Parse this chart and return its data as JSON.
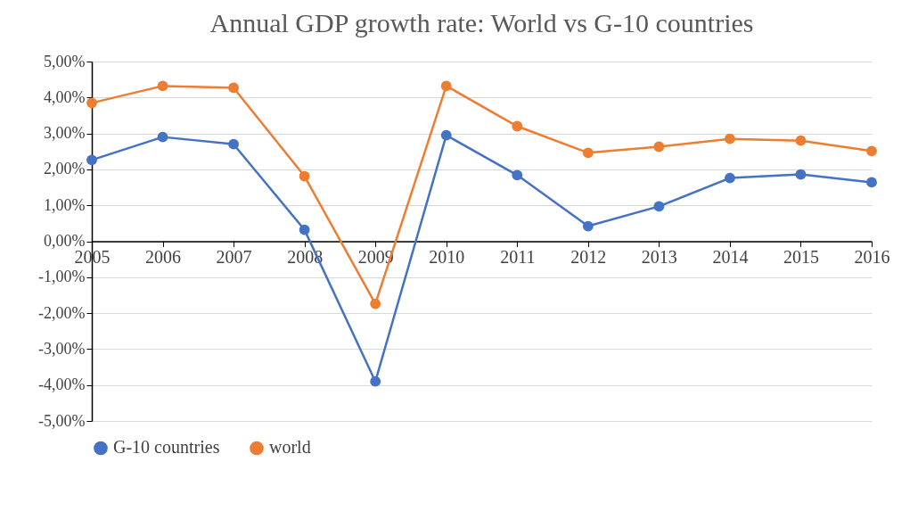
{
  "chart_data": {
    "type": "line",
    "title": "Annual GDP growth rate: World vs G-10 countries",
    "categories": [
      "2005",
      "2006",
      "2007",
      "2008",
      "2009",
      "2010",
      "2011",
      "2012",
      "2013",
      "2014",
      "2015",
      "2016"
    ],
    "series": [
      {
        "name": "G-10 countries",
        "color": "#4472c4",
        "values": [
          2.26,
          2.9,
          2.7,
          0.32,
          -3.9,
          2.95,
          1.84,
          0.42,
          0.97,
          1.76,
          1.86,
          1.64
        ]
      },
      {
        "name": "world",
        "color": "#ed7d31",
        "values": [
          3.85,
          4.32,
          4.27,
          1.81,
          -1.74,
          4.32,
          3.2,
          2.46,
          2.63,
          2.85,
          2.8,
          2.51
        ]
      }
    ],
    "ylim": [
      -5,
      5
    ],
    "yticks": [
      {
        "value": -5,
        "label": "-5,00%"
      },
      {
        "value": -4,
        "label": "-4,00%"
      },
      {
        "value": -3,
        "label": "-3,00%"
      },
      {
        "value": -2,
        "label": "-2,00%"
      },
      {
        "value": -1,
        "label": "-1,00%"
      },
      {
        "value": 0,
        "label": "0,00%"
      },
      {
        "value": 1,
        "label": "1,00%"
      },
      {
        "value": 2,
        "label": "2,00%"
      },
      {
        "value": 3,
        "label": "3,00%"
      },
      {
        "value": 4,
        "label": "4,00%"
      },
      {
        "value": 5,
        "label": "5,00%"
      }
    ],
    "grid": "y",
    "legend": "bottom",
    "marker": "circle",
    "line_style": "solid"
  }
}
